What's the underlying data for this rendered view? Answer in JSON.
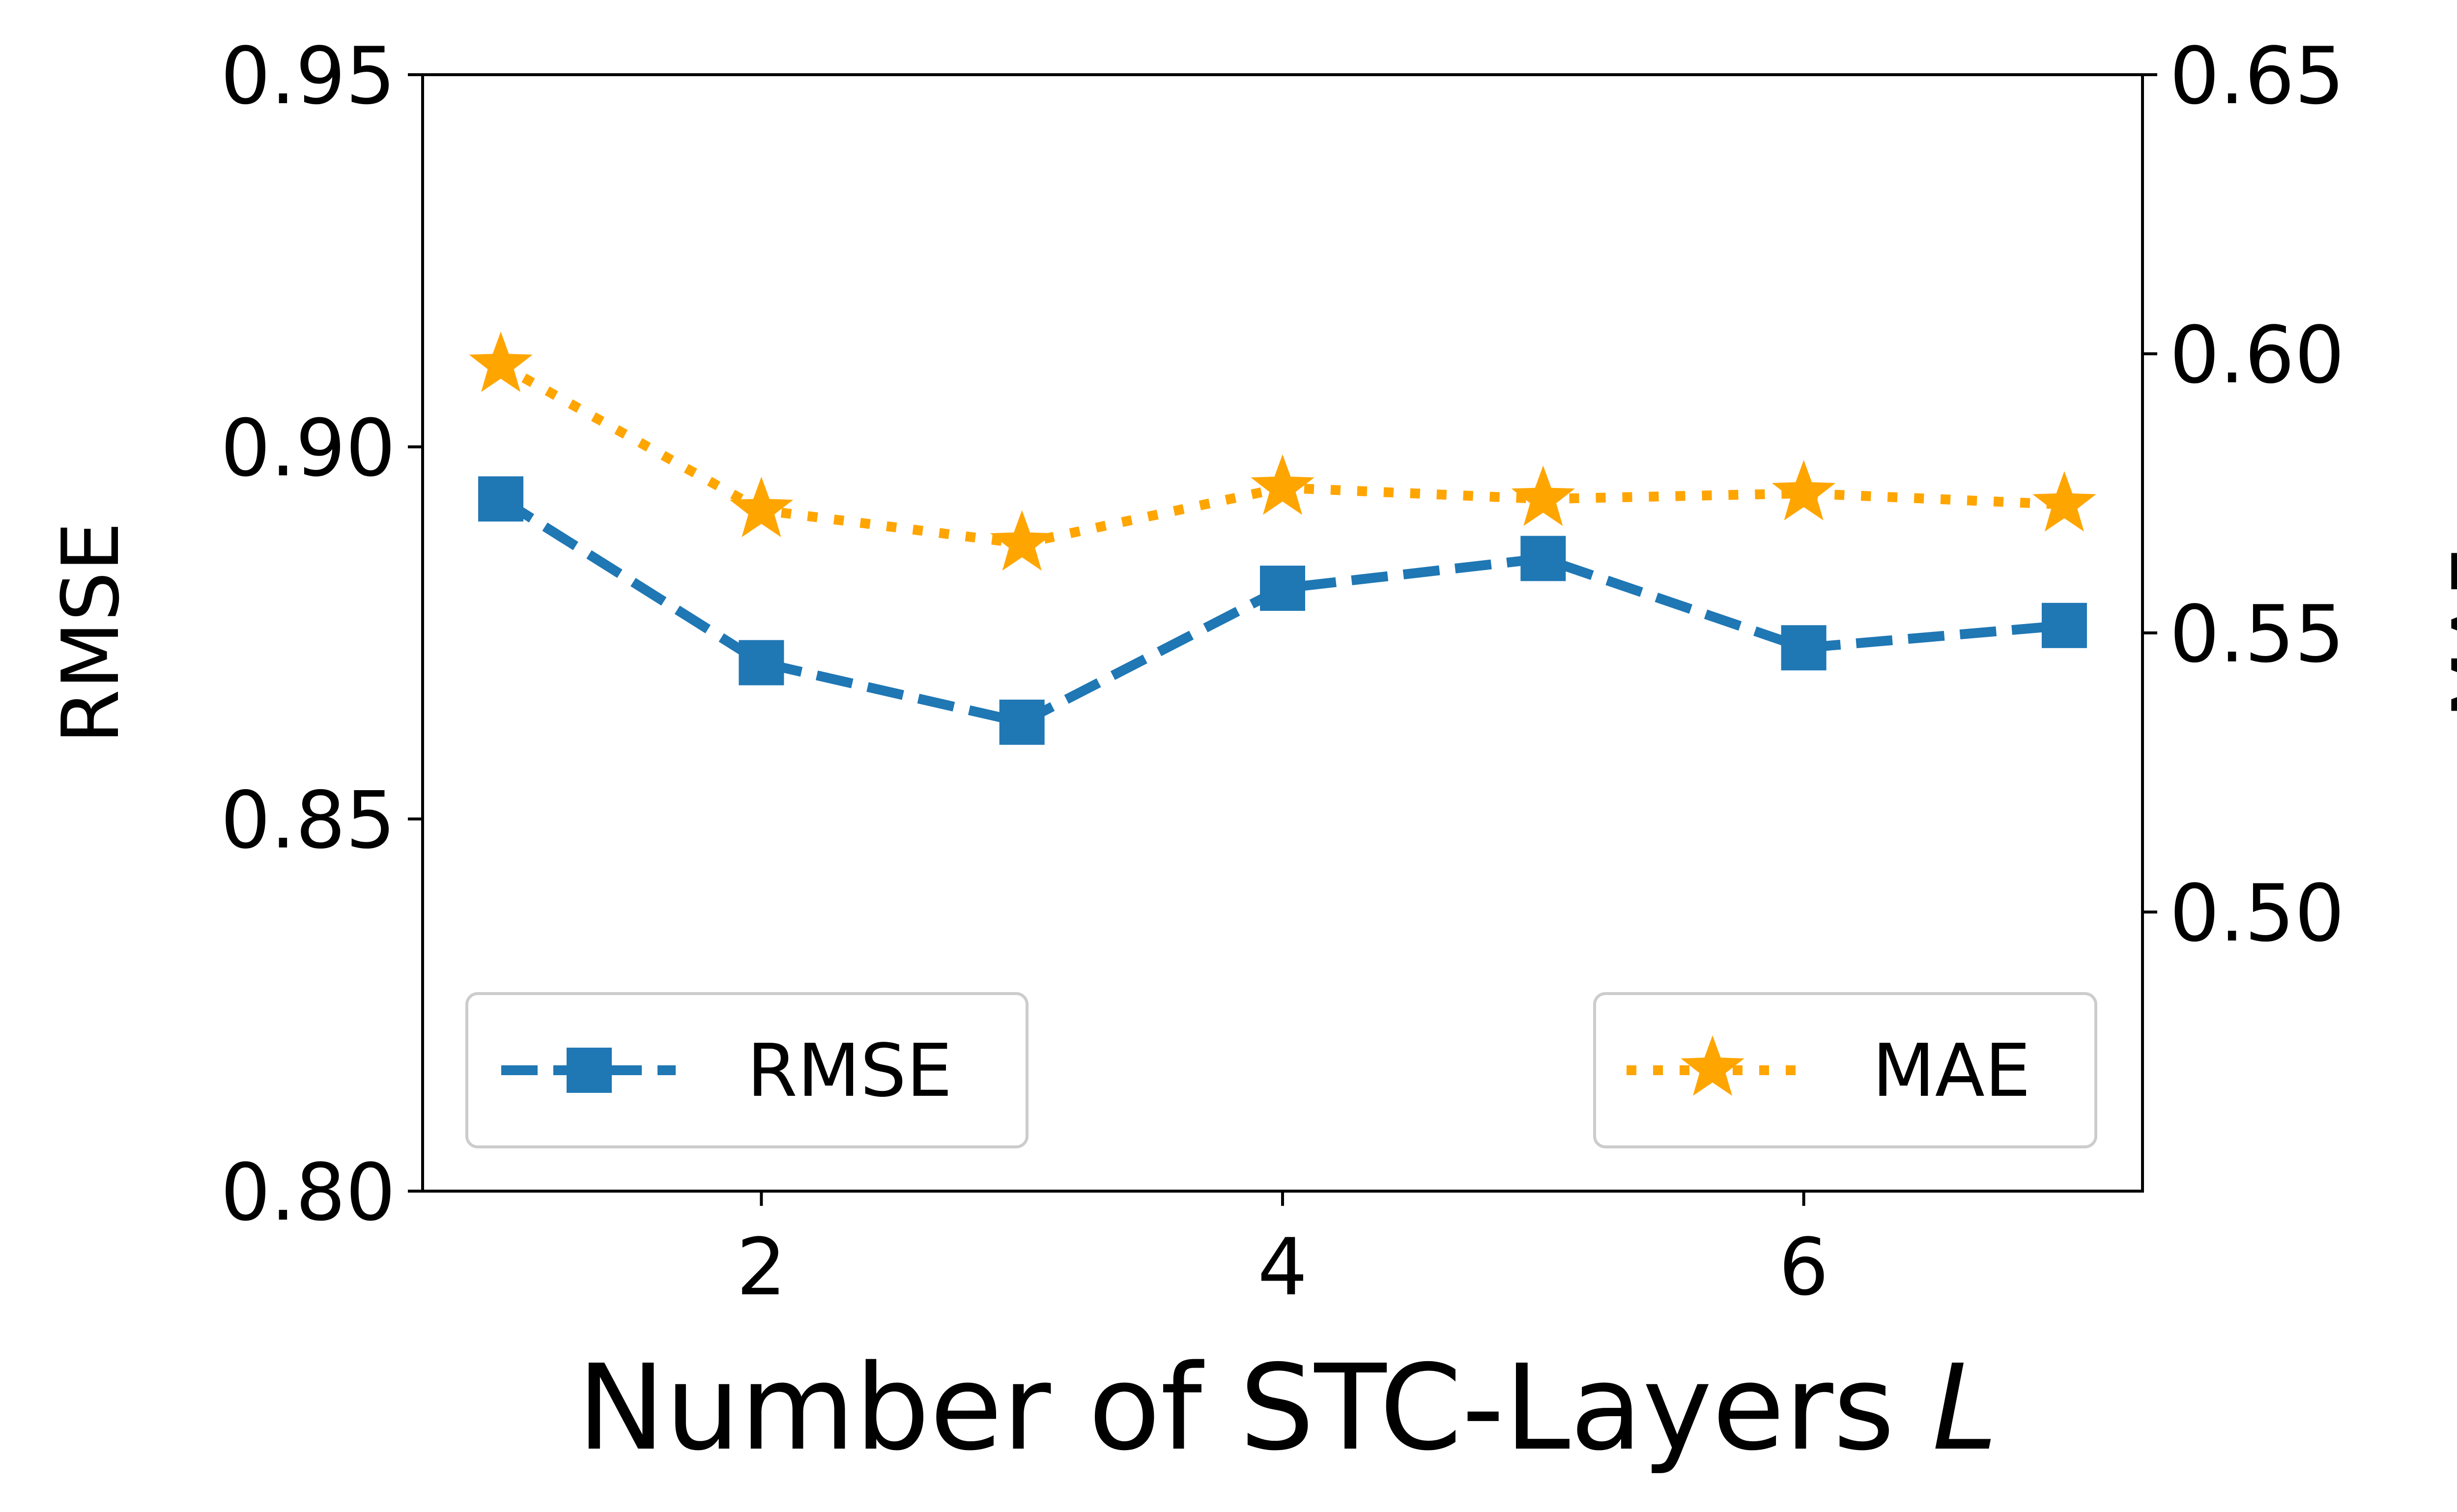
{
  "chart_data": {
    "type": "line",
    "x": [
      1,
      2,
      3,
      4,
      5,
      6,
      7
    ],
    "xlabel_text": "Number of STC-Layers ",
    "xlabel_var": "L",
    "xticks": [
      2,
      4,
      6
    ],
    "xlim": [
      0.7,
      7.3
    ],
    "left_axis": {
      "label": "RMSE",
      "ylim": [
        0.8,
        0.95
      ],
      "ticks": [
        "0.80",
        "0.85",
        "0.90",
        "0.95"
      ]
    },
    "right_axis": {
      "label": "MAE",
      "ylim": [
        0.45,
        0.65
      ],
      "ticks": [
        "0.50",
        "0.55",
        "0.60",
        "0.65"
      ]
    },
    "series": [
      {
        "name": "RMSE",
        "axis": "left",
        "values": [
          0.893,
          0.871,
          0.863,
          0.881,
          0.885,
          0.873,
          0.876
        ],
        "color": "#1f77b4",
        "linestyle": "dashed",
        "marker": "square"
      },
      {
        "name": "MAE",
        "axis": "right",
        "values": [
          0.598,
          0.572,
          0.566,
          0.576,
          0.574,
          0.575,
          0.573
        ],
        "color": "#ffa500",
        "linestyle": "dotted",
        "marker": "star"
      }
    ],
    "legends": [
      {
        "series": "RMSE",
        "text": "RMSE",
        "placement": "lower-left"
      },
      {
        "series": "MAE",
        "text": "MAE",
        "placement": "lower-right"
      }
    ],
    "grid": false
  }
}
